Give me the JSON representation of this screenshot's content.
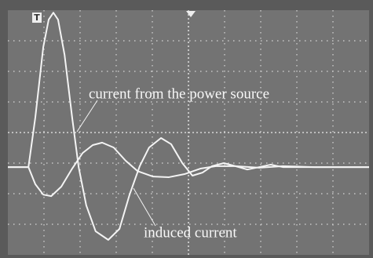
{
  "chart_data": {
    "type": "line",
    "trigger_marker": "T",
    "xlim": [
      0,
      10
    ],
    "ylim": [
      -4,
      4
    ],
    "grid": true,
    "background": "#737373",
    "grid_color": "#d8d8d8",
    "series": [
      {
        "name": "current from the power source",
        "color": "#f4f4f4",
        "x": [
          0,
          0.57,
          0.76,
          0.98,
          1.13,
          1.26,
          1.39,
          1.57,
          1.78,
          1.96,
          2.17,
          2.43,
          2.78,
          3.09,
          3.37,
          3.65,
          3.91,
          4.24,
          4.52,
          4.83,
          5.11,
          5.39,
          5.65,
          5.98,
          6.3,
          6.63,
          6.96,
          7.28,
          7.61,
          8.04,
          8.7,
          10
        ],
        "values": [
          -1.13,
          -1.13,
          0.49,
          2.79,
          3.69,
          3.92,
          3.69,
          2.54,
          0.49,
          -1.13,
          -2.38,
          -3.23,
          -3.51,
          -3.15,
          -2.03,
          -1.1,
          -0.49,
          -0.18,
          -0.38,
          -1.0,
          -1.41,
          -1.31,
          -1.1,
          -1.0,
          -1.1,
          -1.21,
          -1.13,
          -1.05,
          -1.13,
          -1.13,
          -1.13,
          -1.13
        ]
      },
      {
        "name": "induced current",
        "color": "#f4f4f4",
        "x": [
          0,
          0.57,
          0.76,
          0.98,
          1.2,
          1.48,
          1.78,
          2.07,
          2.35,
          2.61,
          2.93,
          3.26,
          3.59,
          4.02,
          4.46,
          4.89,
          5.33,
          5.76,
          6.3,
          6.96,
          7.61,
          8.48,
          10
        ],
        "values": [
          -1.13,
          -1.13,
          -1.69,
          -2.03,
          -2.08,
          -1.77,
          -1.18,
          -0.67,
          -0.41,
          -0.33,
          -0.49,
          -0.92,
          -1.26,
          -1.44,
          -1.46,
          -1.36,
          -1.18,
          -1.1,
          -1.1,
          -1.15,
          -1.1,
          -1.13,
          -1.13
        ]
      }
    ]
  }
}
